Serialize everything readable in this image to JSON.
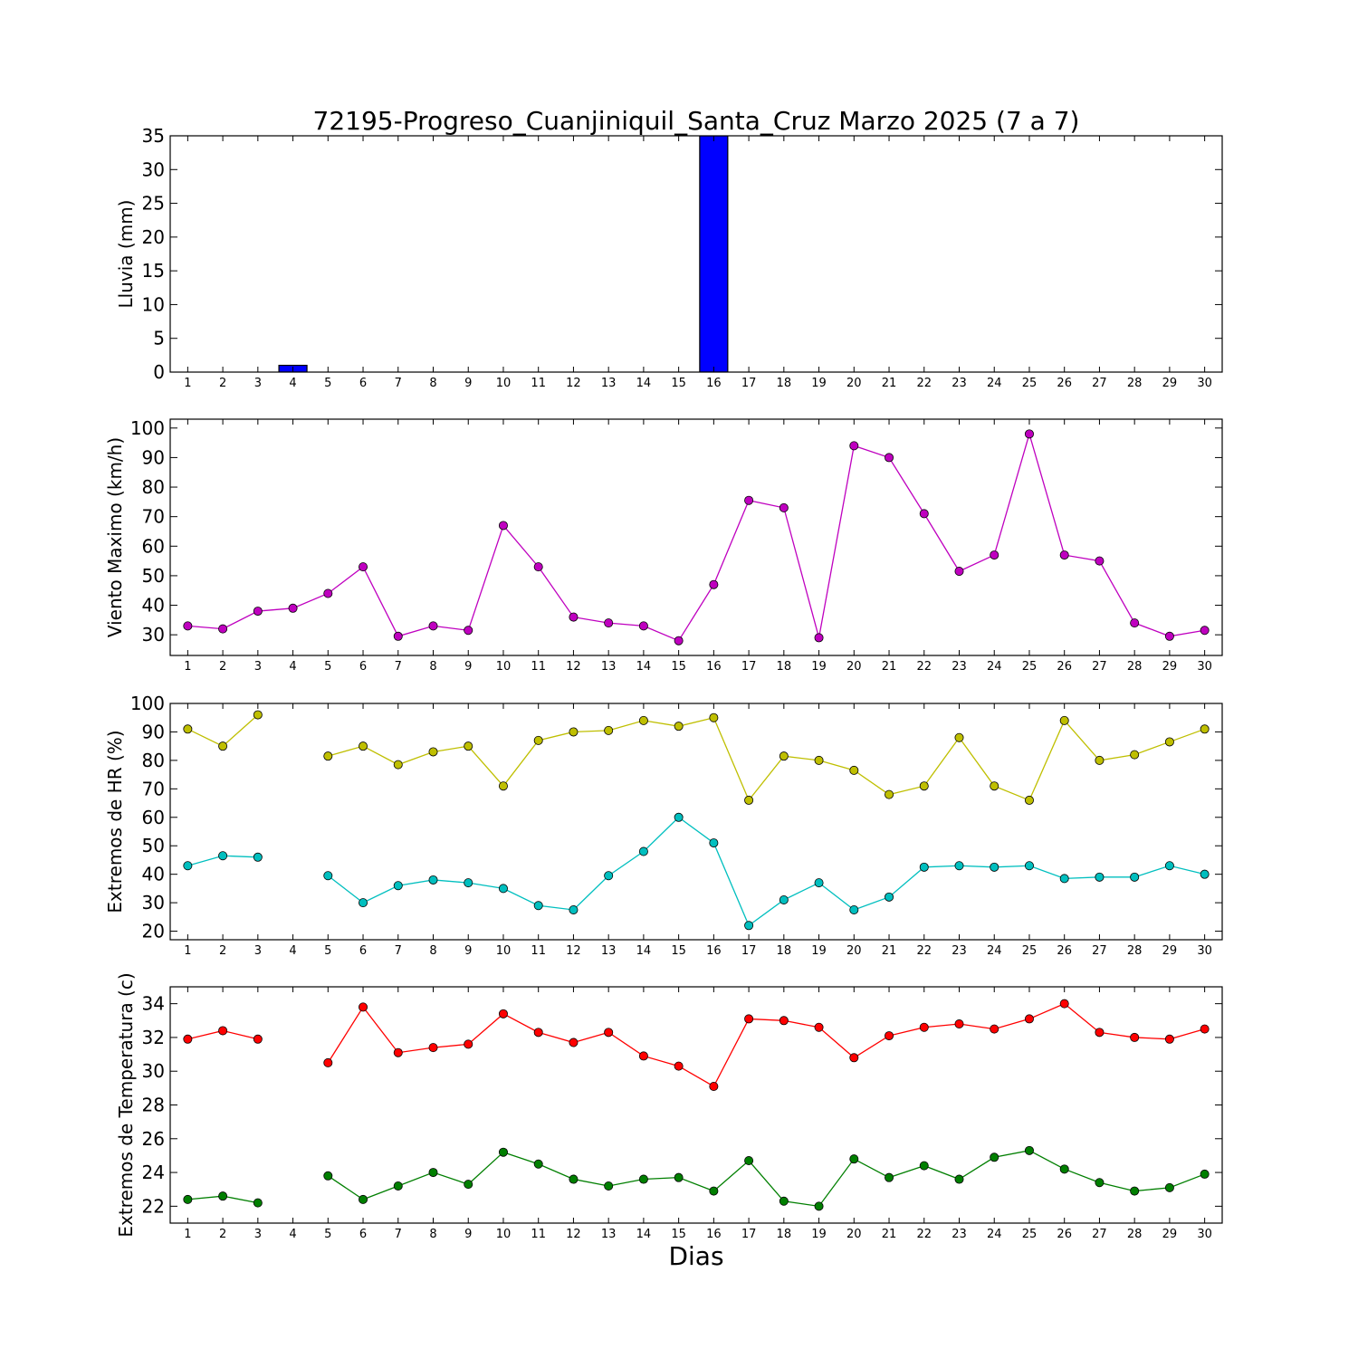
{
  "chart_data": [
    {
      "type": "bar",
      "title": "72195-Progreso_Cuanjiniquil_Santa_Cruz Marzo 2025  (7 a 7)",
      "ylabel": "Lluvia (mm)",
      "xlabel": "",
      "ylim": [
        0,
        35
      ],
      "yticks": [
        0,
        5,
        10,
        15,
        20,
        25,
        30,
        35
      ],
      "categories": [
        "1",
        "2",
        "3",
        "4",
        "5",
        "6",
        "7",
        "8",
        "9",
        "10",
        "11",
        "12",
        "13",
        "14",
        "15",
        "16",
        "17",
        "18",
        "19",
        "20",
        "21",
        "22",
        "23",
        "24",
        "25",
        "26",
        "27",
        "28",
        "29",
        "30"
      ],
      "values": [
        0,
        0,
        0,
        1,
        0,
        0,
        0,
        0,
        0,
        0,
        0,
        0,
        0,
        0,
        0,
        35,
        0,
        0,
        0,
        0,
        0,
        0,
        0,
        0,
        0,
        0,
        0,
        0,
        0,
        0
      ],
      "colors": {
        "bar": "#0000ff"
      },
      "grid": false
    },
    {
      "type": "line",
      "ylabel": "Viento Maximo (km/h)",
      "xlabel": "",
      "ylim": [
        23,
        103
      ],
      "yticks": [
        30,
        40,
        50,
        60,
        70,
        80,
        90,
        100
      ],
      "x": [
        1,
        2,
        3,
        4,
        5,
        6,
        7,
        8,
        9,
        10,
        11,
        12,
        13,
        14,
        15,
        16,
        17,
        18,
        19,
        20,
        21,
        22,
        23,
        24,
        25,
        26,
        27,
        28,
        29,
        30
      ],
      "series": [
        {
          "values": [
            33,
            32,
            38,
            39,
            44,
            53,
            29.5,
            33,
            31.5,
            67,
            53,
            36,
            34,
            33,
            28,
            47,
            75.5,
            73,
            29,
            94,
            90,
            71,
            51.5,
            57,
            98,
            57,
            55,
            34,
            29.5,
            31.5
          ],
          "color": "#bf00bf"
        }
      ],
      "grid": false
    },
    {
      "type": "line",
      "ylabel": "Extremos de HR (%)",
      "xlabel": "",
      "ylim": [
        17,
        100
      ],
      "yticks": [
        20,
        30,
        40,
        50,
        60,
        70,
        80,
        90,
        100
      ],
      "x": [
        1,
        2,
        3,
        4,
        5,
        6,
        7,
        8,
        9,
        10,
        11,
        12,
        13,
        14,
        15,
        16,
        17,
        18,
        19,
        20,
        21,
        22,
        23,
        24,
        25,
        26,
        27,
        28,
        29,
        30
      ],
      "series": [
        {
          "values": [
            91,
            85,
            96,
            null,
            81.5,
            85,
            78.5,
            83,
            85,
            71,
            87,
            90,
            90.5,
            94,
            92,
            95,
            66,
            81.5,
            80,
            76.5,
            68,
            71,
            88,
            71,
            66,
            94,
            80,
            82,
            86.5,
            91
          ],
          "color": "#bfbf00"
        },
        {
          "values": [
            43,
            46.5,
            46,
            null,
            39.5,
            30,
            36,
            38,
            37,
            35,
            29,
            27.5,
            39.5,
            48,
            60,
            51,
            22,
            31,
            37,
            27.5,
            32,
            42.5,
            43,
            42.5,
            43,
            38.5,
            39,
            39,
            43,
            40
          ],
          "color": "#00bfbf"
        }
      ],
      "grid": false
    },
    {
      "type": "line",
      "ylabel": "Extremos de Temperatura (c)",
      "xlabel": "Dias",
      "ylim": [
        21,
        35
      ],
      "yticks": [
        22,
        24,
        26,
        28,
        30,
        32,
        34
      ],
      "x": [
        1,
        2,
        3,
        4,
        5,
        6,
        7,
        8,
        9,
        10,
        11,
        12,
        13,
        14,
        15,
        16,
        17,
        18,
        19,
        20,
        21,
        22,
        23,
        24,
        25,
        26,
        27,
        28,
        29,
        30
      ],
      "series": [
        {
          "values": [
            31.9,
            32.4,
            31.9,
            null,
            30.5,
            33.8,
            31.1,
            31.4,
            31.6,
            33.4,
            32.3,
            31.7,
            32.3,
            30.9,
            30.3,
            29.1,
            33.1,
            33.0,
            32.6,
            30.8,
            32.1,
            32.6,
            32.8,
            32.5,
            33.1,
            34.0,
            32.3,
            32.0,
            31.9,
            32.5
          ],
          "color": "#ff0000"
        },
        {
          "values": [
            22.4,
            22.6,
            22.2,
            null,
            23.8,
            22.4,
            23.2,
            24.0,
            23.3,
            25.2,
            24.5,
            23.6,
            23.2,
            23.6,
            23.7,
            22.9,
            24.7,
            22.3,
            22.0,
            24.8,
            23.7,
            24.4,
            23.6,
            24.9,
            25.3,
            24.2,
            23.4,
            22.9,
            23.1,
            23.9
          ],
          "color": "#007f00"
        }
      ],
      "grid": false
    }
  ]
}
